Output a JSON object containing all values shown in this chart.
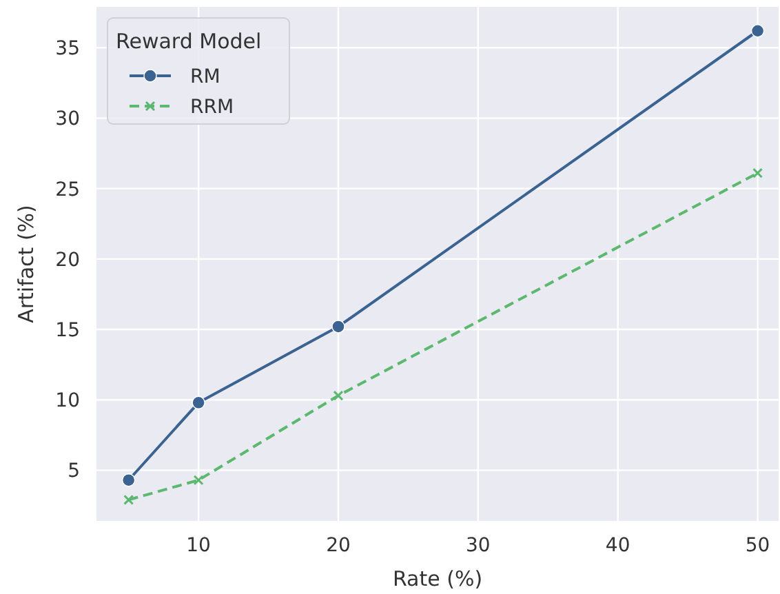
{
  "chart_data": {
    "type": "line",
    "xlabel": "Rate (%)",
    "ylabel": "Artifact (%)",
    "legend_title": "Reward Model",
    "x": [
      5,
      10,
      20,
      50
    ],
    "series": [
      {
        "name": "RM",
        "color": "#3b6391",
        "values": [
          4.3,
          9.8,
          15.2,
          36.2
        ],
        "marker": "circle",
        "line_style": "solid"
      },
      {
        "name": "RRM",
        "color": "#5bb86e",
        "values": [
          2.9,
          4.3,
          10.3,
          26.1
        ],
        "marker": "cross",
        "line_style": "dashed"
      }
    ],
    "xlim": [
      2.7,
      51.5
    ],
    "ylim": [
      1.4,
      37.9
    ],
    "xticks": [
      10,
      20,
      30,
      40,
      50
    ],
    "yticks": [
      5,
      10,
      15,
      20,
      25,
      30,
      35
    ],
    "grid": true,
    "legend": "top left"
  }
}
